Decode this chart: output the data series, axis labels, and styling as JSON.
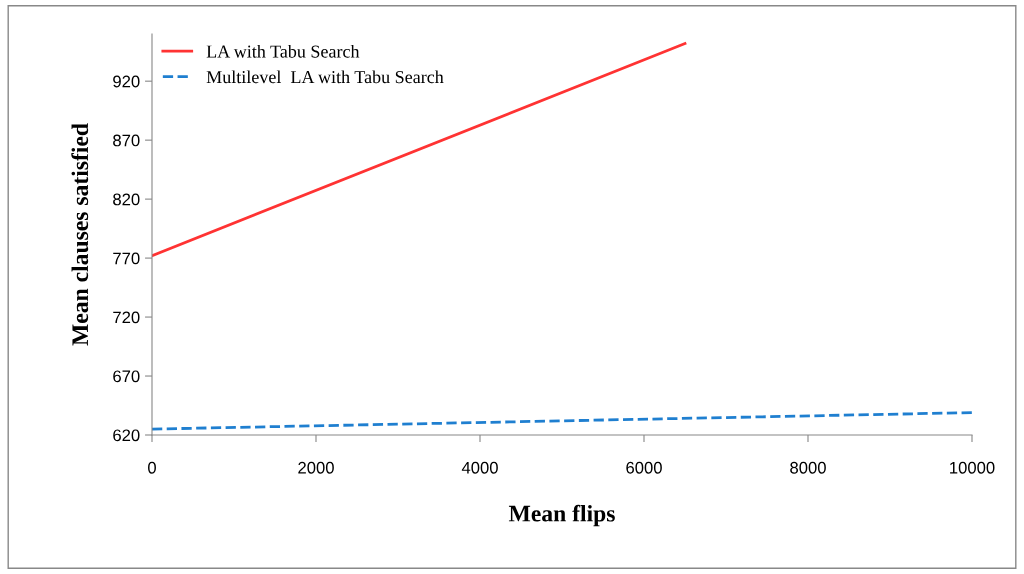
{
  "chart_data": {
    "type": "line",
    "xlabel": "Mean flips",
    "ylabel": "Mean clauses satisfied",
    "xlim": [
      0,
      10000
    ],
    "xticks": [
      0,
      2000,
      4000,
      6000,
      8000,
      10000
    ],
    "ylim": [
      620,
      960
    ],
    "yticks": [
      620,
      670,
      720,
      770,
      820,
      870,
      920
    ],
    "grid": false,
    "legend": "top left",
    "marker": "none",
    "series": [
      {
        "name": "LA with Tabu Search",
        "color": "#ff3333",
        "x": [
          0,
          6500
        ],
        "values": [
          772,
          952
        ],
        "line_style": "solid"
      },
      {
        "name": "Multilevel  LA with Tabu Search",
        "color": "#1f7fd0",
        "x": [
          0,
          10000
        ],
        "values": [
          625,
          639
        ],
        "line_style": "dashed"
      }
    ]
  }
}
